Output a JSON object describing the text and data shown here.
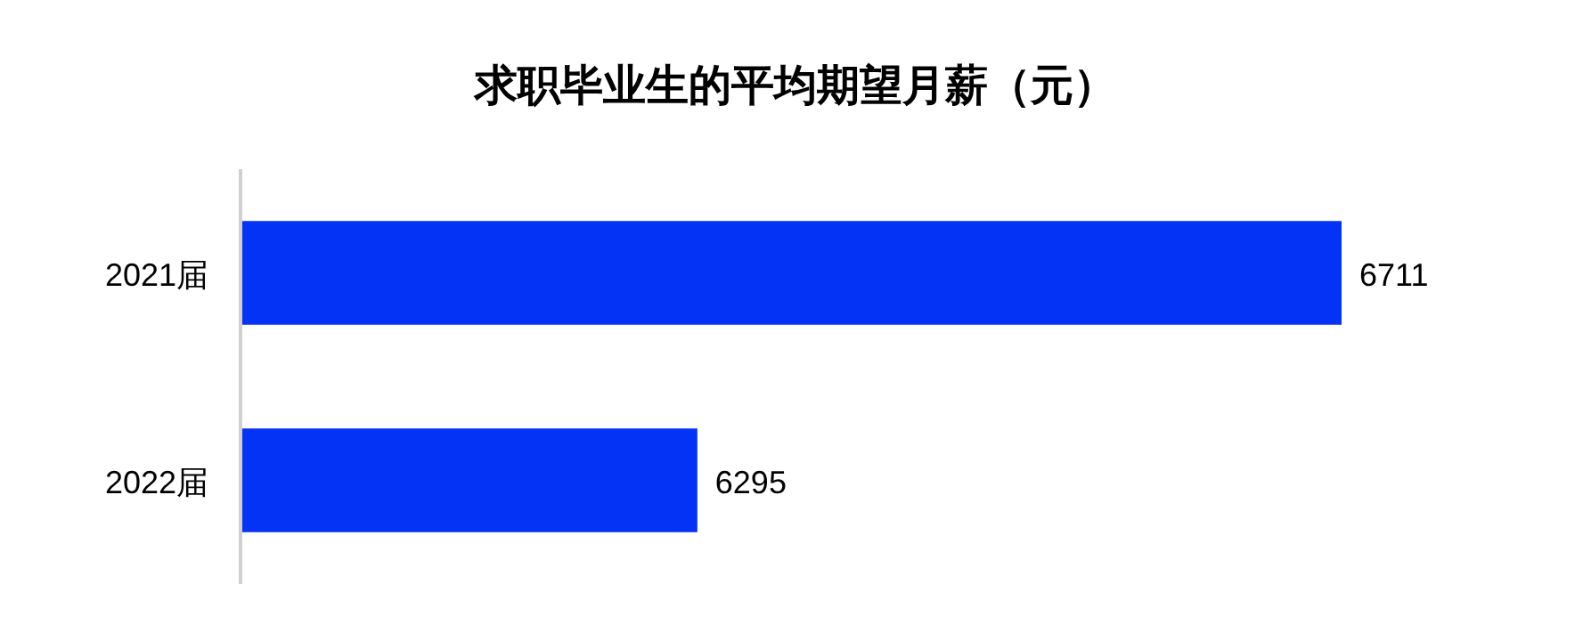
{
  "chart_data": {
    "type": "bar",
    "orientation": "horizontal",
    "title": "求职毕业生的平均期望月薪（元）",
    "categories": [
      "2021届",
      "2022届"
    ],
    "values": [
      6711,
      6295
    ],
    "color": "#0433f5",
    "xlim": [
      6000,
      6711
    ],
    "data_labels": true
  }
}
